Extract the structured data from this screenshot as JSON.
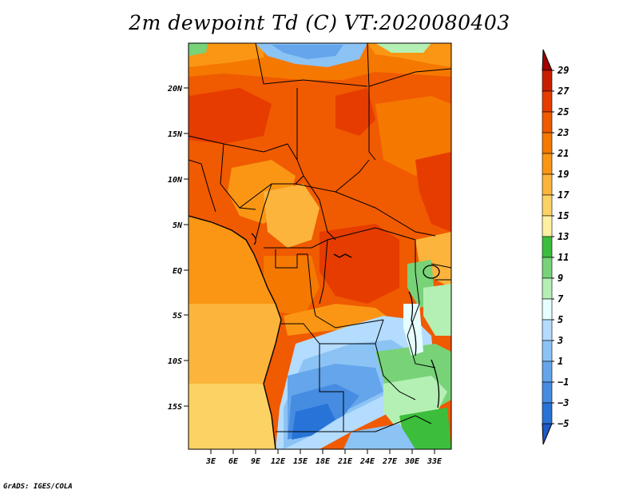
{
  "title": "2m dewpoint Td (C) VT:2020080403",
  "footer": "GrADS: IGES/COLA",
  "map": {
    "lat_labels": [
      "20N",
      "15N",
      "10N",
      "5N",
      "EQ",
      "5S",
      "10S",
      "15S"
    ],
    "lon_labels": [
      "3E",
      "6E",
      "9E",
      "12E",
      "15E",
      "18E",
      "21E",
      "24E",
      "27E",
      "30E",
      "33E"
    ],
    "region": "Central and West Africa",
    "variable": "2m dewpoint temperature"
  },
  "colorbar": {
    "labels": [
      "29",
      "27",
      "25",
      "23",
      "21",
      "19",
      "17",
      "15",
      "13",
      "11",
      "9",
      "7",
      "5",
      "3",
      "1",
      "−1",
      "−3",
      "−5"
    ],
    "colors": [
      "#a00000",
      "#c81e00",
      "#e63c00",
      "#f05a00",
      "#f57800",
      "#fa9614",
      "#fcb43c",
      "#fcd264",
      "#fff0a0",
      "#3cbe3c",
      "#78d278",
      "#b4f0b4",
      "#e6ffff",
      "#b4dcff",
      "#8cc3f5",
      "#64a5eb",
      "#468ce1",
      "#2873d7",
      "#1e5ac8"
    ]
  },
  "icons": {
    "arrow_top": "up-triangle",
    "arrow_bottom": "down-triangle"
  }
}
